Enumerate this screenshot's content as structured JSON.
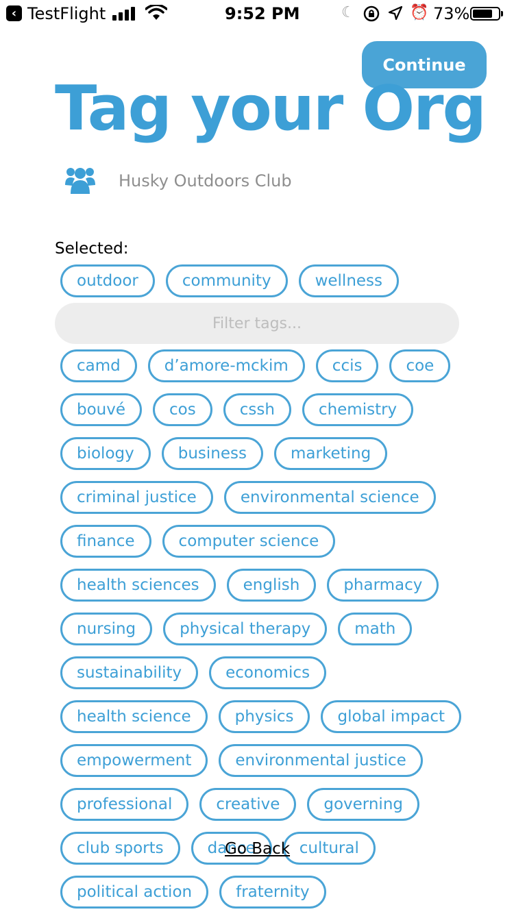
{
  "status_bar": {
    "back_app": "TestFlight",
    "time": "9:52 PM",
    "battery_percent": "73%",
    "battery_level": 0.73,
    "icons": [
      "back-icon",
      "signal-icon",
      "wifi-icon",
      "moon-icon",
      "orientation-lock-icon",
      "location-icon",
      "alarm-icon",
      "battery-icon"
    ]
  },
  "header": {
    "continue_label": "Continue",
    "title": "Tag your Org"
  },
  "org": {
    "icon": "group-icon",
    "name": "Husky Outdoors Club"
  },
  "selected": {
    "label": "Selected:",
    "tags": [
      "outdoor",
      "community",
      "wellness"
    ]
  },
  "filter": {
    "placeholder": "Filter tags...",
    "value": ""
  },
  "tags": [
    "camd",
    "d’amore-mckim",
    "ccis",
    "coe",
    "bouvé",
    "cos",
    "cssh",
    "chemistry",
    "biology",
    "business",
    "marketing",
    "criminal justice",
    "environmental science",
    "finance",
    "computer science",
    "health sciences",
    "english",
    "pharmacy",
    "nursing",
    "physical therapy",
    "math",
    "sustainability",
    "economics",
    "health science",
    "physics",
    "global impact",
    "empowerment",
    "environmental justice",
    "professional",
    "creative",
    "governing",
    "club sports",
    "dance",
    "cultural",
    "political action",
    "fraternity"
  ],
  "footer": {
    "go_back_label": "Go Back"
  },
  "colors": {
    "accent": "#4aa4d6",
    "title": "#3d9fd6",
    "filter_bg": "#ededed"
  }
}
